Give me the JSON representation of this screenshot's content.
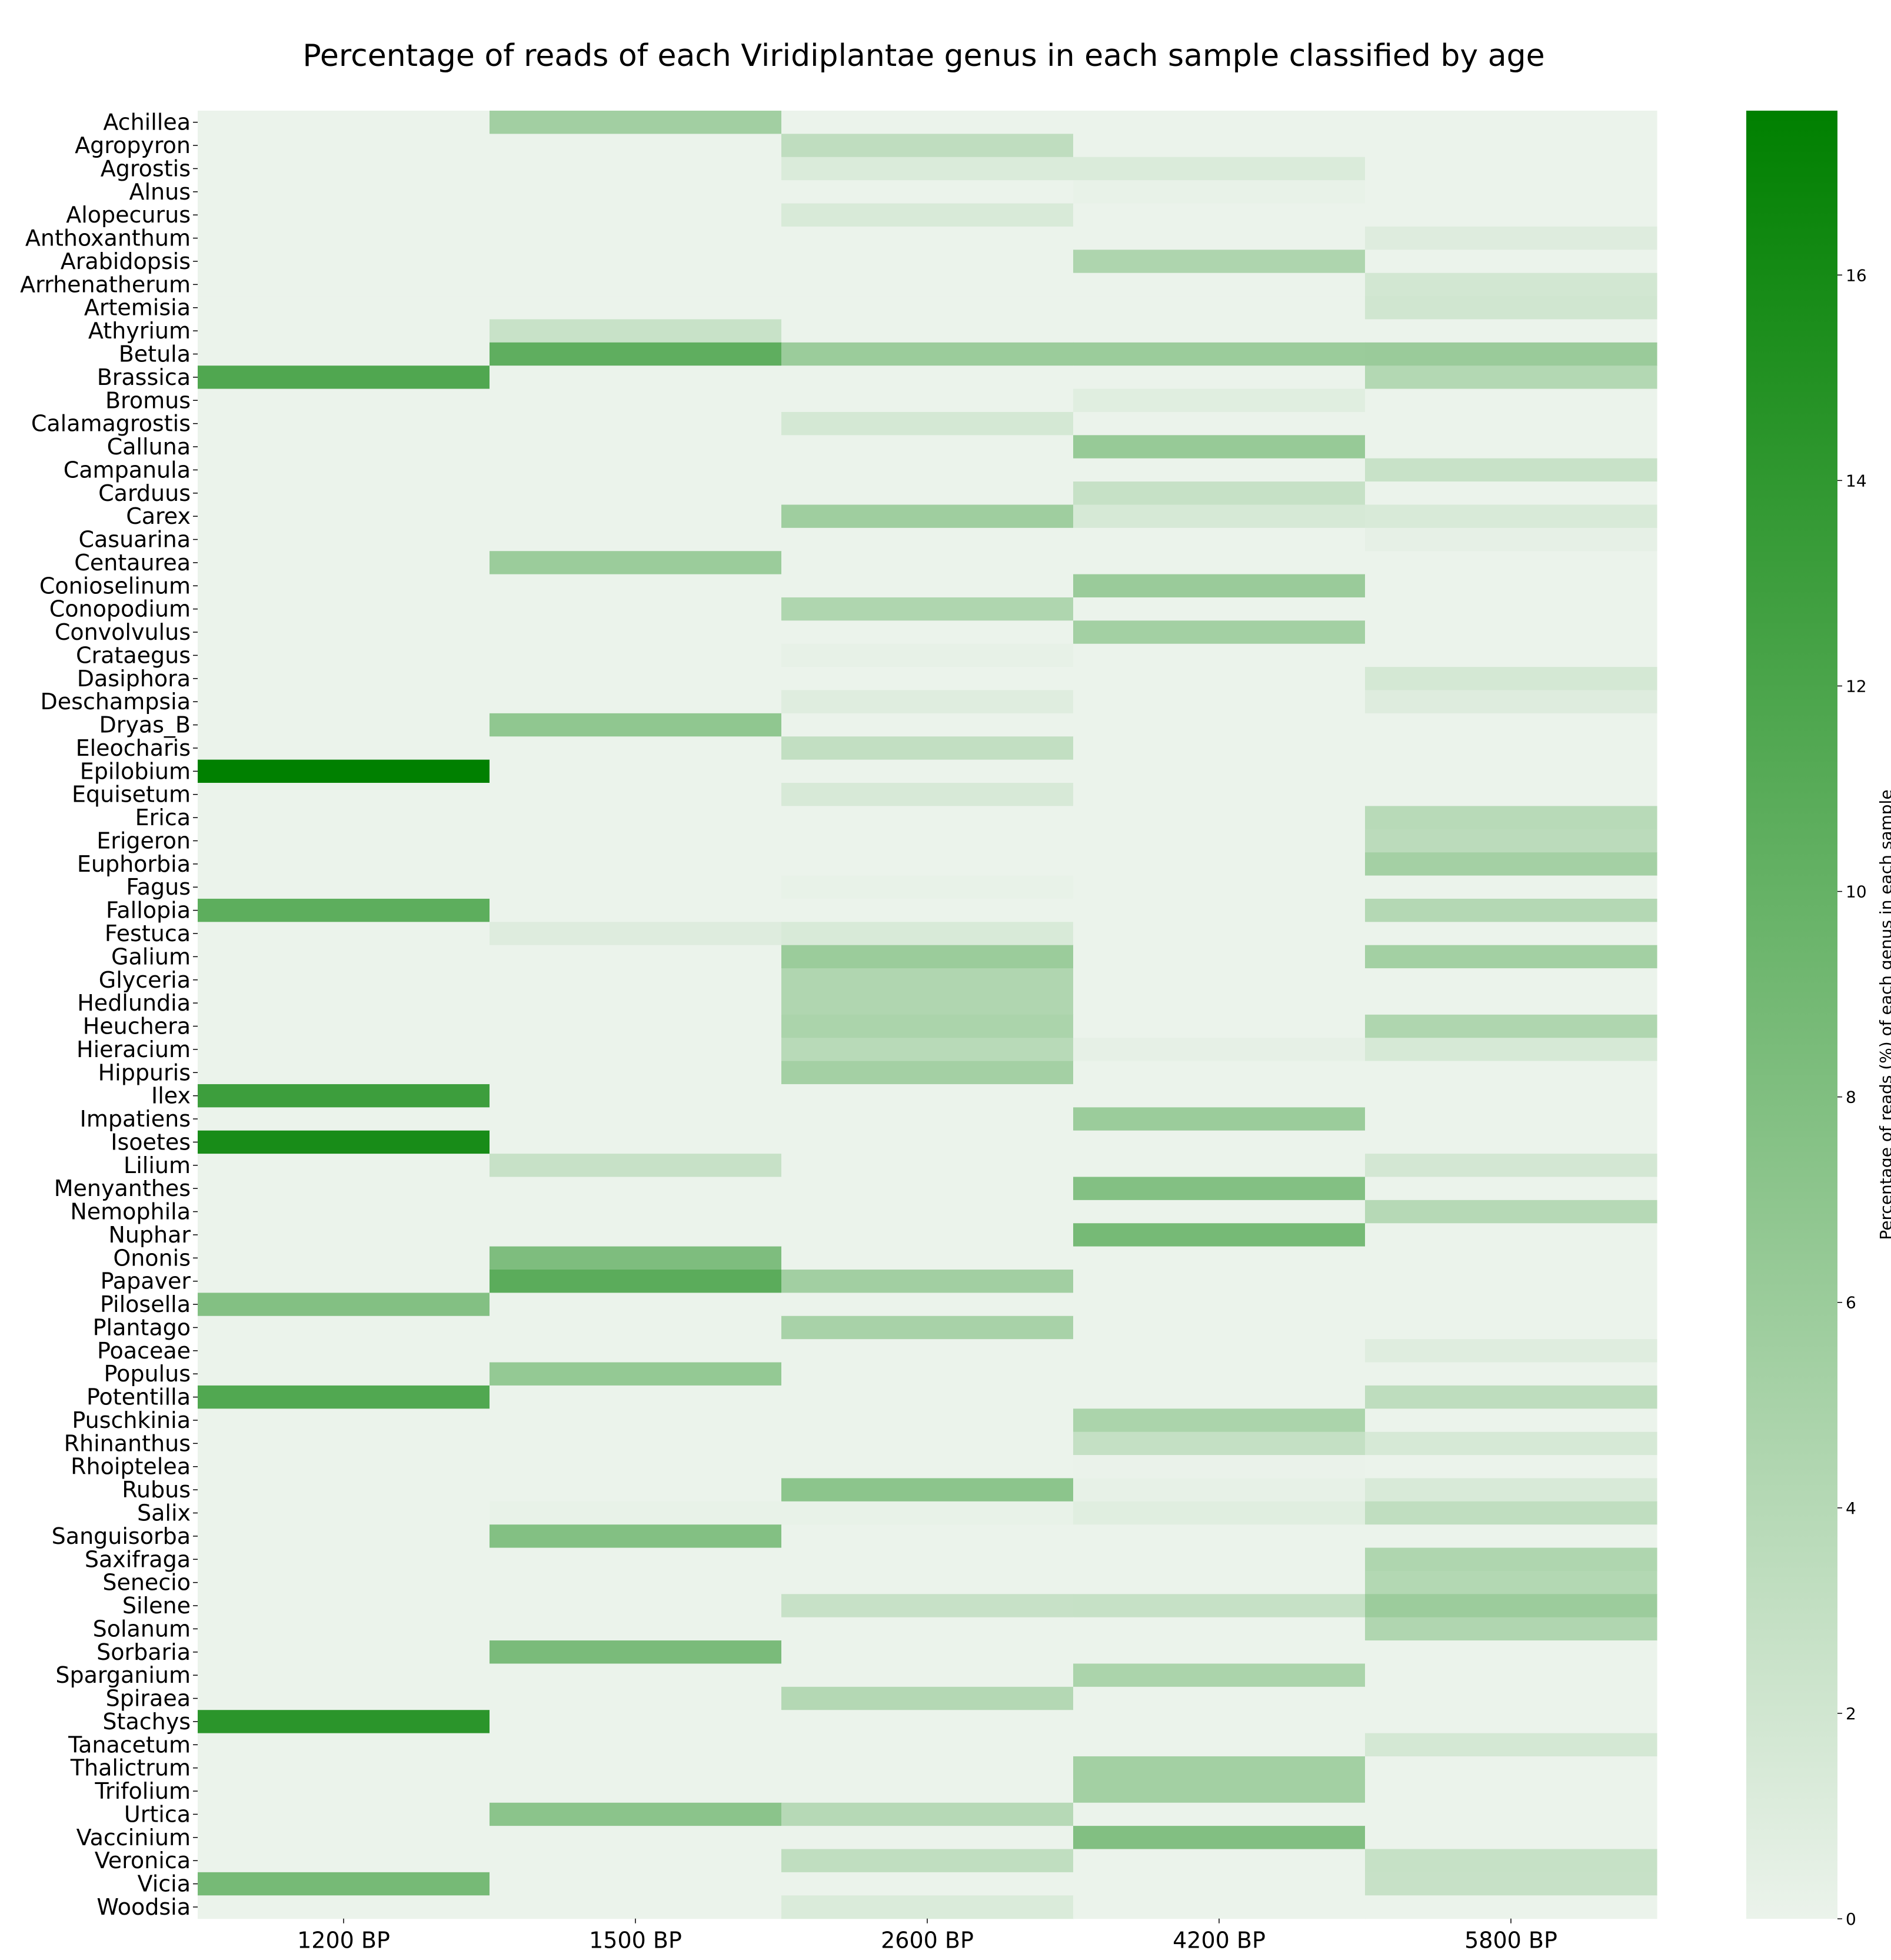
{
  "chart_data": {
    "type": "heatmap",
    "title": "Percentage of reads of each Viridiplantae genus in each sample classified by age",
    "colorbar_label": "Percentage of reads (%) of each genus in each sample",
    "colorbar_ticks": [
      "0",
      "2",
      "4",
      "6",
      "8",
      "10",
      "12",
      "14",
      "16"
    ],
    "vmin": 0,
    "vmax": 17.6,
    "color_low": "#ebf3eb",
    "color_high": "#008000",
    "x_categories": [
      "1200 BP",
      "1500 BP",
      "2600 BP",
      "4200 BP",
      "5800 BP"
    ],
    "y_categories": [
      "Achillea",
      "Agropyron",
      "Agrostis",
      "Alnus",
      "Alopecurus",
      "Anthoxanthum",
      "Arabidopsis",
      "Arrhenatherum",
      "Artemisia",
      "Athyrium",
      "Betula",
      "Brassica",
      "Bromus",
      "Calamagrostis",
      "Calluna",
      "Campanula",
      "Carduus",
      "Carex",
      "Casuarina",
      "Centaurea",
      "Conioselinum",
      "Conopodium",
      "Convolvulus",
      "Crataegus",
      "Dasiphora",
      "Deschampsia",
      "Dryas_B",
      "Eleocharis",
      "Epilobium",
      "Equisetum",
      "Erica",
      "Erigeron",
      "Euphorbia",
      "Fagus",
      "Fallopia",
      "Festuca",
      "Galium",
      "Glyceria",
      "Hedlundia",
      "Heuchera",
      "Hieracium",
      "Hippuris",
      "Ilex",
      "Impatiens",
      "Isoetes",
      "Lilium",
      "Menyanthes",
      "Nemophila",
      "Nuphar",
      "Ononis",
      "Papaver",
      "Pilosella",
      "Plantago",
      "Poaceae",
      "Populus",
      "Potentilla",
      "Puschkinia",
      "Rhinanthus",
      "Rhoiptelea",
      "Rubus",
      "Salix",
      "Sanguisorba",
      "Saxifraga",
      "Senecio",
      "Silene",
      "Solanum",
      "Sorbaria",
      "Sparganium",
      "Spiraea",
      "Stachys",
      "Tanacetum",
      "Thalictrum",
      "Trifolium",
      "Urtica",
      "Vaccinium",
      "Veronica",
      "Vicia",
      "Woodsia"
    ],
    "values": [
      [
        0,
        5.5,
        0,
        0,
        0
      ],
      [
        0,
        0,
        3.3,
        0,
        0
      ],
      [
        0,
        0,
        1.3,
        1.3,
        0
      ],
      [
        0,
        0,
        0,
        0.2,
        0
      ],
      [
        0,
        0,
        1.4,
        0,
        0
      ],
      [
        0,
        0,
        0,
        0,
        1.0
      ],
      [
        0,
        0,
        0,
        4.6,
        0
      ],
      [
        0,
        0,
        0,
        0,
        1.9
      ],
      [
        0,
        0,
        0,
        0,
        2.0
      ],
      [
        0,
        2.6,
        0,
        0,
        0
      ],
      [
        0,
        10.5,
        6.0,
        6.0,
        6.1
      ],
      [
        11.6,
        0,
        0,
        0,
        4.2
      ],
      [
        0,
        0,
        0,
        0.8,
        0
      ],
      [
        0,
        0,
        1.7,
        0,
        0
      ],
      [
        0,
        0,
        0,
        6.3,
        0
      ],
      [
        0,
        0,
        0,
        0,
        2.6
      ],
      [
        0,
        0,
        0,
        2.8,
        0
      ],
      [
        0,
        0,
        5.7,
        1.6,
        1.4
      ],
      [
        0,
        0,
        0,
        0,
        0.4
      ],
      [
        0,
        6.0,
        0,
        0,
        0
      ],
      [
        0,
        0,
        0,
        6.1,
        0
      ],
      [
        0,
        0,
        4.5,
        0,
        0
      ],
      [
        0,
        0,
        0,
        5.4,
        0
      ],
      [
        0,
        0,
        0.3,
        0,
        0
      ],
      [
        0,
        0,
        0,
        0,
        1.7
      ],
      [
        0,
        0,
        0.9,
        0,
        1.0
      ],
      [
        0,
        6.8,
        0,
        0,
        0
      ],
      [
        0,
        0,
        3.1,
        0,
        0
      ],
      [
        17.6,
        0,
        0,
        0,
        0
      ],
      [
        0,
        0,
        1.5,
        0,
        0
      ],
      [
        0,
        0,
        0,
        0,
        3.8
      ],
      [
        0,
        0,
        0,
        0,
        3.6
      ],
      [
        0,
        0,
        0,
        0,
        5.3
      ],
      [
        0,
        0,
        0.2,
        0,
        0
      ],
      [
        10.6,
        0,
        0,
        0,
        4.1
      ],
      [
        0,
        1.0,
        1.4,
        0,
        0
      ],
      [
        0,
        0,
        6.0,
        0,
        5.4
      ],
      [
        0,
        0,
        4.4,
        0,
        0
      ],
      [
        0,
        0,
        4.4,
        0,
        0
      ],
      [
        0,
        0,
        4.8,
        0,
        4.5
      ],
      [
        0,
        0,
        3.8,
        0.4,
        1.6
      ],
      [
        0,
        0,
        5.3,
        0,
        0
      ],
      [
        13.0,
        0,
        0,
        0,
        0
      ],
      [
        0,
        0,
        0,
        6.0,
        0
      ],
      [
        15.8,
        0,
        0,
        0,
        0
      ],
      [
        0,
        2.7,
        0,
        0,
        1.8
      ],
      [
        0,
        0,
        0,
        7.8,
        0
      ],
      [
        0,
        0,
        0,
        0,
        4.0
      ],
      [
        0,
        0,
        0,
        8.8,
        0
      ],
      [
        0,
        8.2,
        0,
        0,
        0
      ],
      [
        0,
        10.8,
        5.5,
        0,
        0
      ],
      [
        7.8,
        0,
        0,
        0,
        0
      ],
      [
        0,
        0,
        5.0,
        0,
        0
      ],
      [
        0,
        0,
        0,
        0,
        0.9
      ],
      [
        0,
        6.5,
        0,
        0,
        0
      ],
      [
        11.5,
        0,
        0,
        0,
        3.4
      ],
      [
        0,
        0,
        0,
        4.8,
        0
      ],
      [
        0,
        0,
        0,
        2.9,
        1.6
      ],
      [
        0,
        0,
        0,
        0.1,
        0
      ],
      [
        0,
        0,
        7.1,
        0.3,
        1.4
      ],
      [
        0,
        0.2,
        0.2,
        0.8,
        3.2
      ],
      [
        0,
        7.8,
        0,
        0,
        0
      ],
      [
        0,
        0,
        0,
        0,
        4.5
      ],
      [
        0,
        0,
        0,
        0,
        4.2
      ],
      [
        0,
        0,
        2.7,
        2.8,
        5.9
      ],
      [
        0,
        0,
        0,
        0,
        4.4
      ],
      [
        0,
        8.5,
        0,
        0,
        0
      ],
      [
        0,
        0,
        0,
        4.8,
        0
      ],
      [
        0,
        0,
        4.1,
        0,
        0
      ],
      [
        14.4,
        0,
        0,
        0,
        0
      ],
      [
        0,
        0,
        0,
        0,
        1.7
      ],
      [
        0,
        0,
        0,
        5.4,
        0
      ],
      [
        0,
        0,
        0,
        5.4,
        0
      ],
      [
        0,
        7.2,
        4.0,
        0,
        0
      ],
      [
        0,
        0,
        0,
        7.9,
        0
      ],
      [
        0,
        0,
        3.2,
        0,
        2.8
      ],
      [
        8.8,
        0,
        0,
        0,
        2.7
      ],
      [
        0,
        0,
        1.3,
        0,
        0
      ]
    ]
  }
}
